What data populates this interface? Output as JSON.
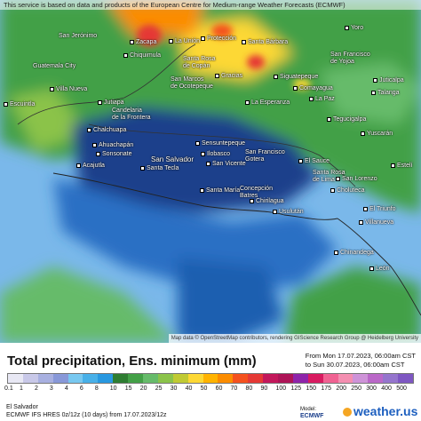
{
  "disclaimer": "This service is based on data and products of the European Centre for Medium-range Weather Forecasts (ECMWF)",
  "attribution": "Map data © OpenStreetMap contributors, rendering GIScience Research Group @ Heidelberg University",
  "places": {
    "san_jeronimo": "San Jerónimo",
    "zacapa": "Zacapa",
    "la_union": "La Unión",
    "chiquimula": "Chiquimula",
    "guatemala_city": "Guatemala City",
    "villa_nueva": "Villa Nueva",
    "escuintla": "Escuintla",
    "jutiapa": "Jutiapa",
    "chalchuapa": "Chalchuapa",
    "candelaria": "Candelaria\nde la Frontera",
    "ahuachapan": "Ahuachapán",
    "sonsonate": "Sonsonate",
    "acajutla": "Acajutla",
    "santa_tecla": "Santa Tecla",
    "san_salvador": "San Salvador",
    "sensuntepeque": "Sensuntepeque",
    "ilobasco": "Ilobasco",
    "san_vicente": "San Vicente",
    "santa_maria": "Santa María",
    "concepcion_batres": "Concepción\nBatres",
    "chirilagua": "Chirilagua",
    "usulutan": "Usulután",
    "san_francisco_gotera": "San Francisco\nGotera",
    "el_sauce": "El Sauce",
    "santa_rosa_de_lima": "Santa Rosa\nde Lima",
    "san_lorenzo": "San Lorenzo",
    "choluteca": "Choluteca",
    "el_triunfo": "El Triunfo",
    "villanueva": "Villanueva",
    "chinandega": "Chinandega",
    "leon": "León",
    "san_marcos_ocotepeque": "San Marcos\nde Ocotepeque",
    "santa_rosa_copan": "Santa Rosa\nde Copán",
    "gracias": "Gracias",
    "la_esperanza": "La Esperanza",
    "proteccion": "Protección",
    "santa_barbara": "Santa Bárbara",
    "siguatepeque": "Siguatepeque",
    "comayagua": "Comayagua",
    "san_francisco": "San Francisco\nde Yojoa",
    "tegucigalpa": "Tegucigalpa",
    "la_paz": "La Paz",
    "talanga": "Talanga",
    "juticalpa": "Juticalpa",
    "yoro": "Yoro",
    "yuscaran": "Yuscarán",
    "esteli": "Estelí"
  },
  "footer": {
    "title": "Total precipitation, Ens. minimum (mm)",
    "from": "From Mon 17.07.2023, 06:00am CST",
    "to": "to Sun 30.07.2023, 06:00am CST",
    "region": "El Salvador",
    "model": "ECMWF IFS HRES 0z/12z (10 days) from 17.07.2023/12z",
    "model_label": "Model:",
    "ecmwf_logo": "ECMWF",
    "brand": "weather.us"
  },
  "scale": {
    "ticks": [
      "0.1",
      "1",
      "2",
      "3",
      "4",
      "6",
      "8",
      "10",
      "15",
      "20",
      "25",
      "30",
      "40",
      "50",
      "60",
      "70",
      "80",
      "90",
      "100",
      "125",
      "150",
      "175",
      "200",
      "250",
      "300",
      "400",
      "500"
    ],
    "colors": [
      "#e8e8f4",
      "#c8c8e8",
      "#a8b0e0",
      "#8898d8",
      "#78c8f0",
      "#48b0e8",
      "#2898e0",
      "#2e7d32",
      "#43a047",
      "#66bb6a",
      "#8bc34a",
      "#c0ca33",
      "#fdd835",
      "#ffb300",
      "#fb8c00",
      "#f4511e",
      "#e53935",
      "#c2185b",
      "#ad1457",
      "#8e24aa",
      "#d81b60",
      "#f06292",
      "#f48fb1",
      "#ce93d8",
      "#ba68c8",
      "#9575cd",
      "#7e57c2"
    ]
  },
  "colors": {
    "land_base": "#43a047",
    "heavy_rain": "#1b3f8b",
    "moderate_rain": "#1e5fb0",
    "light_rain": "#4a90d9",
    "sea_light": "#78b4ea",
    "hotspot": "#e53935"
  }
}
